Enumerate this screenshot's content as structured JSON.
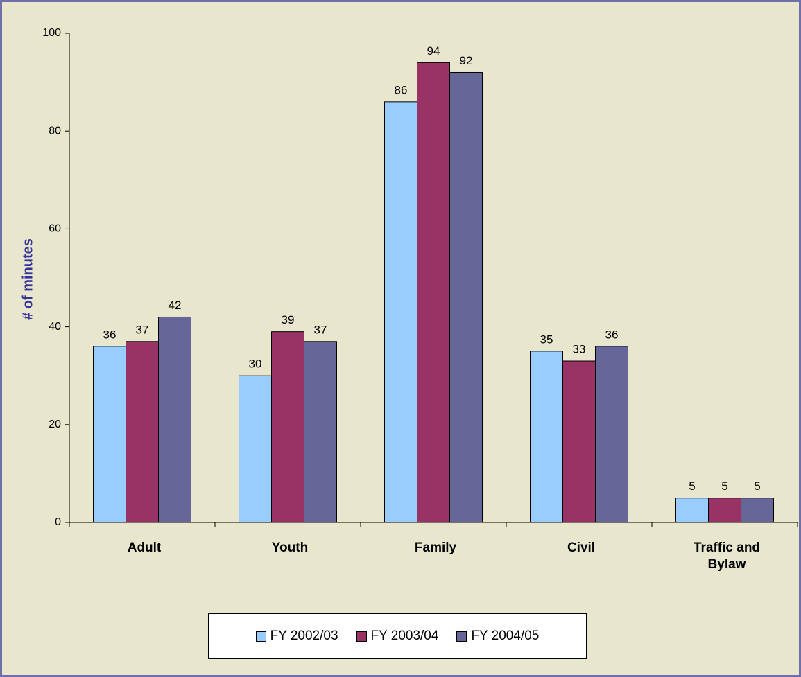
{
  "chart_data": {
    "type": "bar",
    "y_label": "# of minutes",
    "categories": [
      "Adult",
      "Youth",
      "Family",
      "Civil",
      "Traffic and Bylaw"
    ],
    "series": [
      {
        "name": "FY 2002/03",
        "color": "#99ccff",
        "values": [
          36,
          30,
          86,
          35,
          5
        ]
      },
      {
        "name": "FY 2003/04",
        "color": "#993366",
        "values": [
          37,
          39,
          94,
          33,
          5
        ]
      },
      {
        "name": "FY 2004/05",
        "color": "#666699",
        "values": [
          42,
          37,
          92,
          36,
          5
        ]
      }
    ],
    "ylim": [
      0,
      100
    ],
    "yticks": [
      0,
      20,
      40,
      60,
      80,
      100
    ],
    "legend": "bottom"
  }
}
